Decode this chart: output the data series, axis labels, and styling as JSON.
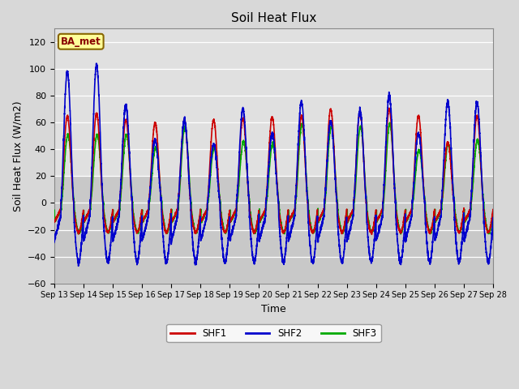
{
  "title": "Soil Heat Flux",
  "xlabel": "Time",
  "ylabel": "Soil Heat Flux (W/m2)",
  "ylim": [
    -60,
    130
  ],
  "yticks": [
    -60,
    -40,
    -20,
    0,
    20,
    40,
    60,
    80,
    100,
    120
  ],
  "background_color": "#e0e0e0",
  "plot_bg_lower": "#c8c8c8",
  "plot_bg_upper": "#e8e8e8",
  "grid_color": "#ffffff",
  "line_colors": {
    "SHF1": "#cc0000",
    "SHF2": "#0000cc",
    "SHF3": "#00aa00"
  },
  "line_widths": {
    "SHF1": 1.2,
    "SHF2": 1.2,
    "SHF3": 1.2
  },
  "annotation_text": "BA_met",
  "annotation_color": "#880000",
  "annotation_bg": "#ffff99",
  "start_day": 13,
  "end_day": 28,
  "n_points": 5040,
  "shf1_peaks": [
    65,
    67,
    62,
    60,
    62,
    62,
    63,
    64,
    65,
    70,
    68,
    70,
    65,
    45,
    65
  ],
  "shf2_peaks": [
    98,
    103,
    73,
    47,
    62,
    44,
    70,
    52,
    75,
    61,
    69,
    80,
    52,
    75,
    75
  ],
  "shf3_peaks": [
    52,
    52,
    52,
    42,
    58,
    42,
    47,
    45,
    60,
    58,
    58,
    60,
    40,
    45,
    48
  ],
  "shf1_night": 22,
  "shf2_night": 40,
  "shf3_night": 22
}
